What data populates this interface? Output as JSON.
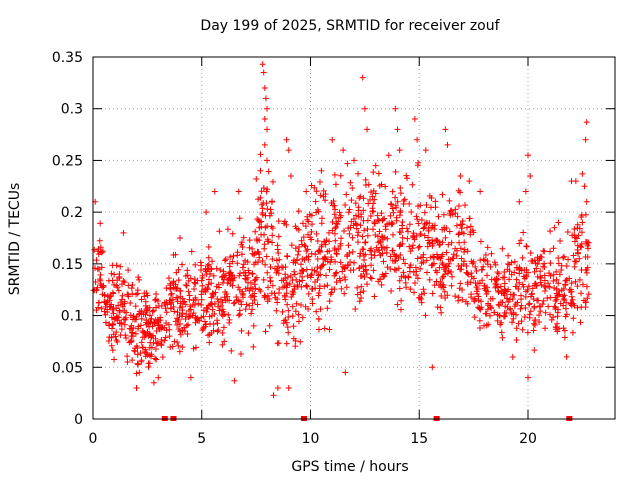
{
  "chart_data": {
    "type": "scatter",
    "title": "Day 199 of 2025, SRMTID for receiver zouf",
    "xlabel": "GPS time / hours",
    "ylabel": "SRMTID / TECUs",
    "xlim": [
      0,
      24
    ],
    "ylim": [
      0,
      0.35
    ],
    "grid": true,
    "marker": "plus",
    "color": "#ff0000",
    "x_ticks": [
      0,
      5,
      10,
      15,
      20
    ],
    "x_tick_labels": [
      "0",
      "5",
      "10",
      "15",
      "20"
    ],
    "y_ticks": [
      0,
      0.05,
      0.1,
      0.15,
      0.2,
      0.25,
      0.3,
      0.35
    ],
    "y_tick_labels": [
      "0",
      "0.05",
      "0.1",
      "0.15",
      "0.2",
      "0.25",
      "0.3",
      "0.35"
    ],
    "zero_markers_x": [
      3.3,
      3.7,
      9.7,
      15.8,
      21.9
    ],
    "bands": [
      {
        "x0": 0.0,
        "x1": 0.5,
        "lo": 0.07,
        "hi": 0.2,
        "n": 35
      },
      {
        "x0": 0.5,
        "x1": 1.5,
        "lo": 0.05,
        "hi": 0.17,
        "n": 90
      },
      {
        "x0": 1.5,
        "x1": 2.5,
        "lo": 0.03,
        "hi": 0.15,
        "n": 90
      },
      {
        "x0": 2.5,
        "x1": 3.3,
        "lo": 0.03,
        "hi": 0.13,
        "n": 70
      },
      {
        "x0": 3.3,
        "x1": 4.5,
        "lo": 0.05,
        "hi": 0.17,
        "n": 100
      },
      {
        "x0": 4.5,
        "x1": 6.0,
        "lo": 0.04,
        "hi": 0.2,
        "n": 120
      },
      {
        "x0": 6.0,
        "x1": 7.5,
        "lo": 0.05,
        "hi": 0.21,
        "n": 120
      },
      {
        "x0": 7.5,
        "x1": 8.3,
        "lo": 0.07,
        "hi": 0.28,
        "n": 75
      },
      {
        "x0": 8.3,
        "x1": 9.7,
        "lo": 0.05,
        "hi": 0.22,
        "n": 110
      },
      {
        "x0": 9.7,
        "x1": 11.0,
        "lo": 0.06,
        "hi": 0.25,
        "n": 110
      },
      {
        "x0": 11.0,
        "x1": 12.5,
        "lo": 0.07,
        "hi": 0.26,
        "n": 120
      },
      {
        "x0": 12.5,
        "x1": 14.0,
        "lo": 0.08,
        "hi": 0.27,
        "n": 120
      },
      {
        "x0": 14.0,
        "x1": 15.8,
        "lo": 0.07,
        "hi": 0.26,
        "n": 140
      },
      {
        "x0": 15.8,
        "x1": 17.5,
        "lo": 0.08,
        "hi": 0.24,
        "n": 130
      },
      {
        "x0": 17.5,
        "x1": 19.0,
        "lo": 0.06,
        "hi": 0.19,
        "n": 110
      },
      {
        "x0": 19.0,
        "x1": 20.5,
        "lo": 0.05,
        "hi": 0.2,
        "n": 110
      },
      {
        "x0": 20.5,
        "x1": 22.0,
        "lo": 0.05,
        "hi": 0.2,
        "n": 110
      },
      {
        "x0": 22.0,
        "x1": 22.8,
        "lo": 0.06,
        "hi": 0.24,
        "n": 65
      }
    ],
    "outliers": [
      [
        0.1,
        0.21
      ],
      [
        1.4,
        0.18
      ],
      [
        4.0,
        0.175
      ],
      [
        5.2,
        0.2
      ],
      [
        5.6,
        0.22
      ],
      [
        6.7,
        0.22
      ],
      [
        7.8,
        0.343
      ],
      [
        7.85,
        0.335
      ],
      [
        7.9,
        0.32
      ],
      [
        7.95,
        0.31
      ],
      [
        8.0,
        0.3
      ],
      [
        7.9,
        0.29
      ],
      [
        8.0,
        0.28
      ],
      [
        7.9,
        0.265
      ],
      [
        8.0,
        0.25
      ],
      [
        7.7,
        0.24
      ],
      [
        8.9,
        0.27
      ],
      [
        9.0,
        0.26
      ],
      [
        9.1,
        0.235
      ],
      [
        9.8,
        0.22
      ],
      [
        10.5,
        0.24
      ],
      [
        10.6,
        0.215
      ],
      [
        11.0,
        0.27
      ],
      [
        11.5,
        0.26
      ],
      [
        12.0,
        0.25
      ],
      [
        12.4,
        0.33
      ],
      [
        12.5,
        0.3
      ],
      [
        12.6,
        0.28
      ],
      [
        13.0,
        0.245
      ],
      [
        13.6,
        0.255
      ],
      [
        13.9,
        0.3
      ],
      [
        14.0,
        0.28
      ],
      [
        14.1,
        0.26
      ],
      [
        14.8,
        0.29
      ],
      [
        14.9,
        0.27
      ],
      [
        15.3,
        0.26
      ],
      [
        16.2,
        0.28
      ],
      [
        16.3,
        0.265
      ],
      [
        16.9,
        0.235
      ],
      [
        17.3,
        0.23
      ],
      [
        17.8,
        0.22
      ],
      [
        19.6,
        0.21
      ],
      [
        19.9,
        0.22
      ],
      [
        20.0,
        0.255
      ],
      [
        20.1,
        0.235
      ],
      [
        21.4,
        0.19
      ],
      [
        22.0,
        0.23
      ],
      [
        22.2,
        0.23
      ],
      [
        22.5,
        0.237
      ],
      [
        22.6,
        0.225
      ],
      [
        22.7,
        0.287
      ],
      [
        22.65,
        0.27
      ],
      [
        22.7,
        0.21
      ],
      [
        22.5,
        0.19
      ],
      [
        2.0,
        0.03
      ],
      [
        2.8,
        0.035
      ],
      [
        3.0,
        0.04
      ],
      [
        4.5,
        0.04
      ],
      [
        6.5,
        0.037
      ],
      [
        8.3,
        0.023
      ],
      [
        8.5,
        0.03
      ],
      [
        9.0,
        0.03
      ],
      [
        11.6,
        0.045
      ],
      [
        15.6,
        0.05
      ],
      [
        19.3,
        0.06
      ],
      [
        20.0,
        0.04
      ]
    ]
  }
}
